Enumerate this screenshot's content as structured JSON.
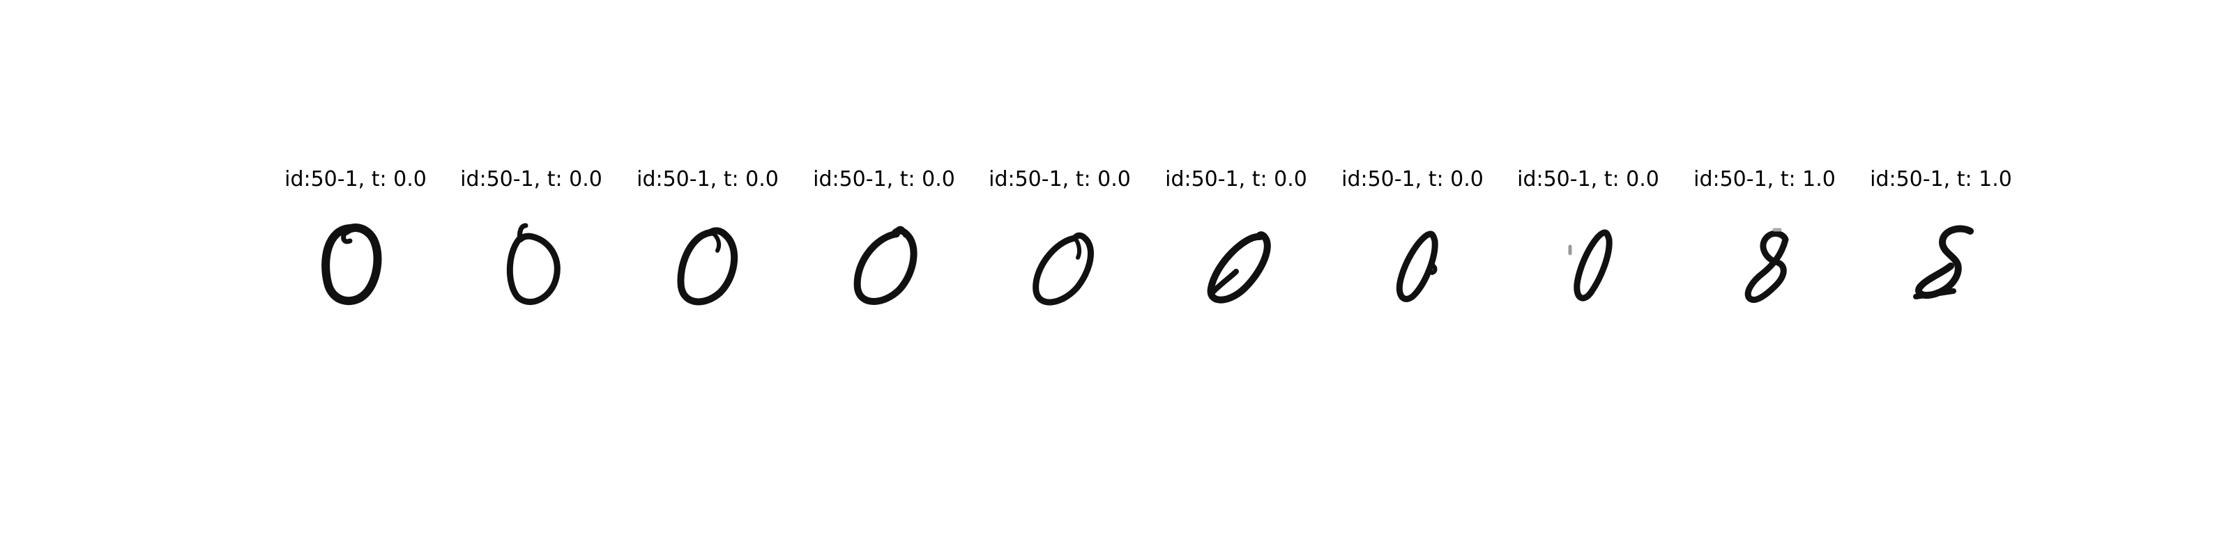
{
  "figure": {
    "panels": [
      {
        "title": "id:50-1, t: 0.0",
        "digit_icon": "digit-zero-upright-icon"
      },
      {
        "title": "id:50-1, t: 0.0",
        "digit_icon": "digit-zero-slight-tilt-icon"
      },
      {
        "title": "id:50-1, t: 0.0",
        "digit_icon": "digit-zero-tilted-icon"
      },
      {
        "title": "id:50-1, t: 0.0",
        "digit_icon": "digit-zero-tilted-icon"
      },
      {
        "title": "id:50-1, t: 0.0",
        "digit_icon": "digit-zero-tilted-icon"
      },
      {
        "title": "id:50-1, t: 0.0",
        "digit_icon": "digit-zero-leaning-icon"
      },
      {
        "title": "id:50-1, t: 0.0",
        "digit_icon": "digit-zero-narrow-icon"
      },
      {
        "title": "id:50-1, t: 0.0",
        "digit_icon": "digit-zero-narrow-icon"
      },
      {
        "title": "id:50-1, t: 1.0",
        "digit_icon": "digit-eight-icon"
      },
      {
        "title": "id:50-1, t: 1.0",
        "digit_icon": "digit-eight-icon"
      }
    ]
  }
}
